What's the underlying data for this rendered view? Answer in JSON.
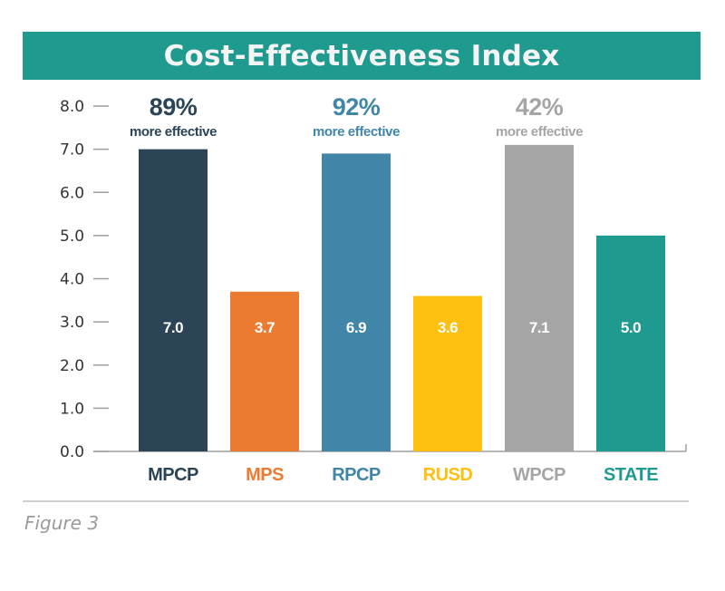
{
  "chart_data": {
    "type": "bar",
    "title": "Cost-Effectiveness Index",
    "categories": [
      "MPCP",
      "MPS",
      "RPCP",
      "RUSD",
      "WPCP",
      "STATE"
    ],
    "values": [
      7.0,
      3.7,
      6.9,
      3.6,
      7.1,
      5.0
    ],
    "value_labels": [
      "7.0",
      "3.7",
      "6.9",
      "3.6",
      "7.1",
      "5.0"
    ],
    "colors": [
      "#2b4456",
      "#ec7b32",
      "#4186a8",
      "#fdc010",
      "#a5a5a5",
      "#1f9a8e"
    ],
    "ylim": [
      0,
      8
    ],
    "yticks": [
      "0.0",
      "1.0",
      "2.0",
      "3.0",
      "4.0",
      "5.0",
      "6.0",
      "7.0",
      "8.0"
    ],
    "xlabel": "",
    "ylabel": "",
    "annotations": [
      {
        "category": "MPCP",
        "percent": "89%",
        "text": "more effective"
      },
      {
        "category": "RPCP",
        "percent": "92%",
        "text": "more effective"
      },
      {
        "category": "WPCP",
        "percent": "42%",
        "text": "more effective"
      }
    ],
    "grid": false,
    "legend": "none"
  },
  "caption": "Figure 3"
}
